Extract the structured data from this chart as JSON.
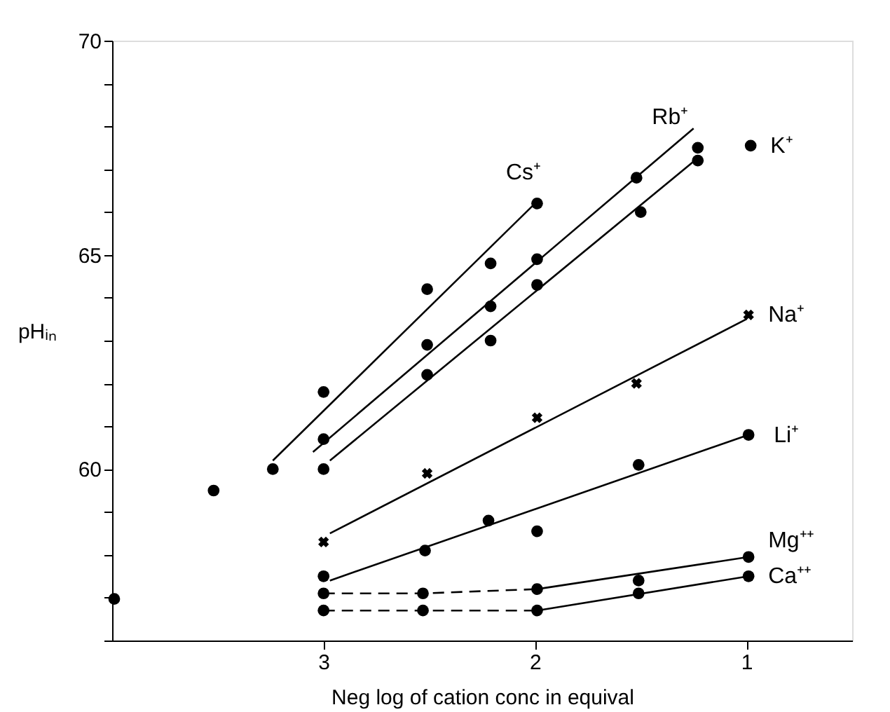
{
  "chart_data": {
    "type": "scatter",
    "xlabel": "Neg log of cation conc in equival",
    "ylabel": "pHᵢₙ",
    "xlim": [
      4.0,
      0.5
    ],
    "xticks": [
      3,
      2,
      1
    ],
    "ylim": [
      56,
      70
    ],
    "yticks": [
      {
        "value": 56,
        "label": null
      },
      {
        "value": 57,
        "label": null
      },
      {
        "value": 58,
        "label": null
      },
      {
        "value": 59,
        "label": null
      },
      60,
      {
        "value": 61,
        "label": null
      },
      {
        "value": 62,
        "label": null
      },
      {
        "value": 63,
        "label": null
      },
      {
        "value": 64,
        "label": null
      },
      65,
      {
        "value": 66,
        "label": null
      },
      {
        "value": 67,
        "label": null
      },
      {
        "value": 68,
        "label": null
      },
      {
        "value": 69,
        "label": null
      },
      70
    ],
    "grid": false,
    "series": [
      {
        "type": "line",
        "color": "#000000",
        "line_style": "solid",
        "x": [
          3.24,
          2.0
        ],
        "values": [
          60.2,
          66.2
        ]
      },
      {
        "type": "line",
        "color": "#000000",
        "line_style": "solid",
        "x": [
          3.05,
          1.25
        ],
        "values": [
          60.4,
          67.95
        ]
      },
      {
        "type": "line",
        "color": "#000000",
        "line_style": "solid",
        "x": [
          2.97,
          1.22
        ],
        "values": [
          60.2,
          67.3
        ]
      },
      {
        "type": "line",
        "color": "#000000",
        "line_style": "solid",
        "x": [
          2.97,
          1.0
        ],
        "values": [
          58.5,
          63.5
        ]
      },
      {
        "type": "line",
        "color": "#000000",
        "line_style": "solid",
        "x": [
          2.97,
          0.99
        ],
        "values": [
          57.4,
          60.8
        ]
      },
      {
        "type": "line",
        "color": "#000000",
        "line_style": "dashed",
        "x": [
          3.0,
          2.53,
          1.99
        ],
        "values": [
          57.1,
          57.1,
          57.2
        ]
      },
      {
        "type": "line",
        "color": "#000000",
        "line_style": "solid",
        "x": [
          1.99,
          0.99
        ],
        "values": [
          57.2,
          57.95
        ]
      },
      {
        "type": "line",
        "color": "#000000",
        "line_style": "dashed",
        "x": [
          3.0,
          2.53,
          1.99
        ],
        "values": [
          56.7,
          56.7,
          56.7
        ]
      },
      {
        "type": "line",
        "color": "#000000",
        "line_style": "solid",
        "x": [
          1.99,
          0.99
        ],
        "values": [
          56.7,
          57.5
        ]
      },
      {
        "name": "Cs⁺",
        "color": "#000000",
        "marker": "circle",
        "x": [
          3.52,
          3.24,
          3.0,
          2.51,
          2.21,
          1.99
        ],
        "values": [
          59.5,
          60.0,
          61.8,
          64.2,
          64.8,
          66.2
        ]
      },
      {
        "name": "Rb⁺",
        "color": "#000000",
        "marker": "circle",
        "x": [
          3.0,
          2.51,
          2.21,
          1.99,
          1.52,
          1.23
        ],
        "values": [
          60.7,
          62.9,
          63.8,
          64.9,
          66.8,
          67.5
        ]
      },
      {
        "name": "K⁺",
        "color": "#000000",
        "marker": "circle",
        "x": [
          3.0,
          2.51,
          2.21,
          1.99,
          1.5,
          1.23,
          0.98
        ],
        "values": [
          60.0,
          62.2,
          63.0,
          64.3,
          66.0,
          67.2,
          67.55
        ]
      },
      {
        "name": "Na⁺",
        "color": "#000000",
        "marker": "cross",
        "x": [
          3.0,
          2.51,
          1.99,
          1.52,
          0.99
        ],
        "values": [
          58.3,
          59.9,
          61.2,
          62.0,
          63.6
        ]
      },
      {
        "name": "Li⁺",
        "color": "#000000",
        "marker": "circle",
        "x": [
          3.0,
          2.52,
          2.22,
          1.99,
          1.51,
          0.99
        ],
        "values": [
          57.5,
          58.1,
          58.8,
          58.55,
          60.1,
          60.8
        ]
      },
      {
        "name": "Mg⁺⁺",
        "color": "#000000",
        "marker": "circle",
        "x": [
          3.0,
          2.53,
          1.99,
          1.51,
          0.99
        ],
        "values": [
          57.1,
          57.1,
          57.2,
          57.4,
          57.95
        ]
      },
      {
        "name": "Ca⁺⁺",
        "color": "#000000",
        "marker": "circle",
        "x": [
          3.0,
          2.53,
          1.99,
          1.51,
          0.99
        ],
        "values": [
          56.7,
          56.7,
          56.7,
          57.1,
          57.5
        ]
      },
      {
        "color": "#000000",
        "marker": "circle",
        "x": [
          3.99
        ],
        "values": [
          56.97
        ]
      }
    ]
  }
}
